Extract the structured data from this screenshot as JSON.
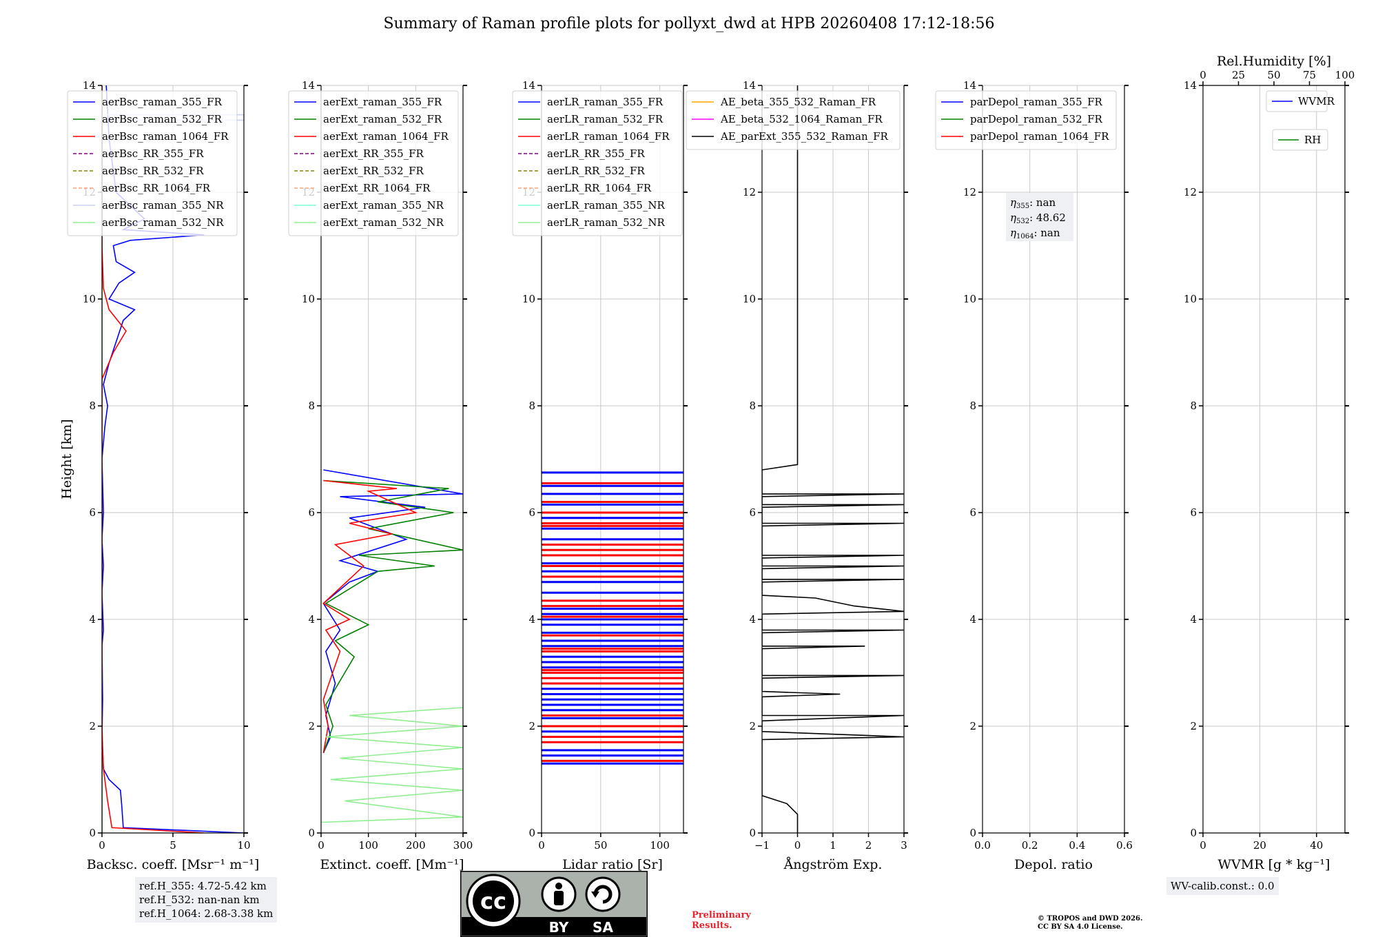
{
  "title": "Summary of Raman profile plots for pollyxt_dwd at HPB 20260408 17:12-18:56",
  "chart_data": [
    {
      "type": "line",
      "name": "backscatter",
      "xlabel": "Backsc. coeff. [Msr⁻¹ m⁻¹]",
      "ylabel": "Height [km]",
      "xlim": [
        0,
        10
      ],
      "ylim": [
        0,
        14
      ],
      "xticks": [
        "0",
        "5",
        "10"
      ],
      "yticks": [
        "0",
        "2",
        "4",
        "6",
        "8",
        "10",
        "12",
        "14"
      ],
      "legend": [
        "aerBsc_raman_355_FR",
        "aerBsc_raman_532_FR",
        "aerBsc_raman_1064_FR",
        "aerBsc_RR_355_FR",
        "aerBsc_RR_532_FR",
        "aerBsc_RR_1064_FR",
        "aerBsc_raman_355_NR",
        "aerBsc_raman_532_NR"
      ],
      "series": [
        {
          "name": "aerBsc_raman_355_FR",
          "color": "#0000ff",
          "points": [
            [
              10,
              0
            ],
            [
              1.5,
              0.1
            ],
            [
              1.4,
              0.5
            ],
            [
              1.3,
              0.8
            ],
            [
              0.5,
              1.0
            ],
            [
              0.1,
              1.2
            ],
            [
              0,
              1.8
            ],
            [
              0.05,
              2.5
            ],
            [
              0,
              3.5
            ],
            [
              0.1,
              3.8
            ],
            [
              0,
              4.5
            ],
            [
              0.1,
              5.0
            ],
            [
              0,
              5.5
            ],
            [
              0.1,
              6.0
            ],
            [
              0,
              7.0
            ],
            [
              0.2,
              7.6
            ],
            [
              0.4,
              8.0
            ],
            [
              0.1,
              8.4
            ],
            [
              0.5,
              8.8
            ],
            [
              1.0,
              9.2
            ],
            [
              1.5,
              9.6
            ],
            [
              2.3,
              9.8
            ],
            [
              0.5,
              10.0
            ],
            [
              1.2,
              10.3
            ],
            [
              2.3,
              10.5
            ],
            [
              1.0,
              10.7
            ],
            [
              0.8,
              11.0
            ],
            [
              2.0,
              11.1
            ],
            [
              7.2,
              11.2
            ],
            [
              1.5,
              11.3
            ],
            [
              3.0,
              11.5
            ],
            [
              1.0,
              12.0
            ],
            [
              0.5,
              13.0
            ],
            [
              0.3,
              14.0
            ]
          ]
        },
        {
          "name": "aerBsc_raman_532_FR",
          "color": "#008000",
          "points": [
            [
              0,
              0
            ],
            [
              0,
              14
            ]
          ]
        },
        {
          "name": "aerBsc_raman_1064_FR",
          "color": "#ff0000",
          "points": [
            [
              7.2,
              0
            ],
            [
              0.7,
              0.1
            ],
            [
              0.4,
              0.6
            ],
            [
              0.1,
              1.2
            ],
            [
              0,
              2.0
            ],
            [
              0,
              8.5
            ],
            [
              0.8,
              9.0
            ],
            [
              1.7,
              9.4
            ],
            [
              0.5,
              9.8
            ],
            [
              0.1,
              10.2
            ],
            [
              0,
              11.0
            ],
            [
              0,
              14.0
            ]
          ]
        },
        {
          "name": "aerBsc_raman_355_NR",
          "color": "#c8d2f0",
          "points": [
            [
              0,
              13.45
            ],
            [
              10,
              13.45
            ],
            [
              10,
              13.35
            ],
            [
              0,
              13.35
            ]
          ]
        }
      ]
    },
    {
      "type": "line",
      "name": "extinction",
      "xlabel": "Extinct. coeff. [Mm⁻¹]",
      "xlim": [
        0,
        300
      ],
      "ylim": [
        0,
        14
      ],
      "xticks": [
        "0",
        "100",
        "200",
        "300"
      ],
      "yticks": [
        "0",
        "2",
        "4",
        "6",
        "8",
        "10",
        "12",
        "14"
      ],
      "legend": [
        "aerExt_raman_355_FR",
        "aerExt_raman_532_FR",
        "aerExt_raman_1064_FR",
        "aerExt_RR_355_FR",
        "aerExt_RR_532_FR",
        "aerExt_RR_1064_FR",
        "aerExt_raman_355_NR",
        "aerExt_raman_532_NR"
      ],
      "series": [
        {
          "name": "aerExt_raman_355_FR",
          "color": "#0000ff",
          "points": [
            [
              5,
              1.5
            ],
            [
              20,
              1.8
            ],
            [
              10,
              2.2
            ],
            [
              30,
              2.8
            ],
            [
              10,
              3.4
            ],
            [
              40,
              3.8
            ],
            [
              5,
              4.3
            ],
            [
              60,
              4.7
            ],
            [
              120,
              4.9
            ],
            [
              40,
              5.1
            ],
            [
              180,
              5.5
            ],
            [
              60,
              5.9
            ],
            [
              220,
              6.1
            ],
            [
              40,
              6.3
            ],
            [
              300,
              6.35
            ],
            [
              5,
              6.8
            ]
          ]
        },
        {
          "name": "aerExt_raman_532_FR",
          "color": "#008000",
          "points": [
            [
              5,
              1.5
            ],
            [
              25,
              2.0
            ],
            [
              10,
              2.4
            ],
            [
              70,
              3.3
            ],
            [
              30,
              3.6
            ],
            [
              100,
              3.9
            ],
            [
              10,
              4.3
            ],
            [
              120,
              4.9
            ],
            [
              240,
              5.0
            ],
            [
              80,
              5.2
            ],
            [
              300,
              5.3
            ],
            [
              100,
              5.7
            ],
            [
              280,
              6.0
            ],
            [
              120,
              6.2
            ],
            [
              270,
              6.45
            ],
            [
              5,
              6.6
            ]
          ]
        },
        {
          "name": "aerExt_raman_1064_FR",
          "color": "#ff0000",
          "points": [
            [
              5,
              1.5
            ],
            [
              15,
              2.0
            ],
            [
              5,
              2.5
            ],
            [
              40,
              3.4
            ],
            [
              10,
              3.8
            ],
            [
              60,
              4.0
            ],
            [
              5,
              4.3
            ],
            [
              90,
              5.0
            ],
            [
              30,
              5.4
            ],
            [
              150,
              5.6
            ],
            [
              60,
              5.8
            ],
            [
              200,
              6.0
            ],
            [
              100,
              6.4
            ],
            [
              160,
              6.45
            ],
            [
              5,
              6.6
            ]
          ]
        },
        {
          "name": "aerExt_raman_532_NR",
          "color": "#90ee90",
          "points": [
            [
              0,
              0.2
            ],
            [
              300,
              0.3
            ],
            [
              50,
              0.6
            ],
            [
              300,
              0.8
            ],
            [
              20,
              1.0
            ],
            [
              300,
              1.2
            ],
            [
              40,
              1.4
            ],
            [
              300,
              1.6
            ],
            [
              10,
              1.8
            ],
            [
              300,
              2.0
            ],
            [
              60,
              2.2
            ],
            [
              300,
              2.35
            ]
          ]
        }
      ]
    },
    {
      "type": "line",
      "name": "lidar_ratio",
      "xlabel": "Lidar ratio [Sr]",
      "xlim": [
        0,
        120
      ],
      "ylim": [
        0,
        14
      ],
      "xticks": [
        "0",
        "50",
        "100"
      ],
      "yticks": [
        "0",
        "2",
        "4",
        "6",
        "8",
        "10",
        "12",
        "14"
      ],
      "legend": [
        "aerLR_raman_355_FR",
        "aerLR_raman_532_FR",
        "aerLR_raman_1064_FR",
        "aerLR_RR_355_FR",
        "aerLR_RR_532_FR",
        "aerLR_RR_1064_FR",
        "aerLR_raman_355_NR",
        "aerLR_raman_532_NR"
      ],
      "series": [
        {
          "name": "aerLR_raman_355_FR",
          "color": "#0000ff",
          "levels": [
            1.3,
            1.45,
            1.55,
            1.9,
            2.15,
            2.3,
            2.4,
            2.5,
            2.6,
            2.7,
            3.1,
            3.2,
            3.3,
            3.5,
            3.6,
            3.75,
            3.9,
            4.0,
            4.1,
            4.2,
            4.5,
            4.7,
            4.9,
            5.05,
            5.5,
            5.7,
            5.9,
            6.15,
            6.35,
            6.5,
            6.75
          ]
        },
        {
          "name": "aerLR_raman_1064_FR",
          "color": "#ff0000",
          "levels": [
            1.35,
            1.7,
            1.8,
            2.0,
            2.2,
            2.8,
            2.9,
            3.0,
            3.05,
            3.4,
            3.45,
            3.7,
            4.05,
            4.25,
            4.35,
            4.8,
            5.0,
            5.2,
            5.3,
            5.4,
            5.75,
            5.8,
            6.0,
            6.2,
            6.55
          ]
        }
      ]
    },
    {
      "type": "line",
      "name": "angstrom",
      "xlabel": "Ångström Exp.",
      "xlim": [
        -1,
        3
      ],
      "ylim": [
        0,
        14
      ],
      "xticks": [
        "−1",
        "0",
        "1",
        "2",
        "3"
      ],
      "yticks": [
        "0",
        "2",
        "4",
        "6",
        "8",
        "10",
        "12",
        "14"
      ],
      "legend": [
        "AE_beta_355_532_Raman_FR",
        "AE_beta_532_1064_Raman_FR",
        "AE_parExt_355_532_Raman_FR"
      ],
      "series": [
        {
          "name": "AE_beta_355_532_Raman_FR",
          "color": "#ffa500",
          "points": []
        },
        {
          "name": "AE_beta_532_1064_Raman_FR",
          "color": "#ff00ff",
          "points": []
        },
        {
          "name": "AE_parExt_355_532_Raman_FR",
          "color": "#000000",
          "points": [
            [
              0,
              14.0
            ],
            [
              0,
              6.9
            ],
            [
              -1,
              6.8
            ],
            [
              -1,
              6.35
            ],
            [
              3,
              6.35
            ],
            [
              -1,
              6.3
            ],
            [
              -1,
              6.15
            ],
            [
              3,
              6.15
            ],
            [
              -1,
              6.1
            ],
            [
              -1,
              5.8
            ],
            [
              3,
              5.8
            ],
            [
              -1,
              5.75
            ],
            [
              -1,
              5.2
            ],
            [
              3,
              5.2
            ],
            [
              -1,
              5.15
            ],
            [
              -1,
              5.0
            ],
            [
              3,
              5.0
            ],
            [
              -1,
              4.95
            ],
            [
              -1,
              4.75
            ],
            [
              3,
              4.75
            ],
            [
              -1,
              4.7
            ],
            [
              -1,
              4.45
            ],
            [
              0.5,
              4.4
            ],
            [
              1.6,
              4.25
            ],
            [
              3,
              4.15
            ],
            [
              -1,
              4.1
            ],
            [
              -1,
              3.8
            ],
            [
              3,
              3.8
            ],
            [
              -1,
              3.75
            ],
            [
              -1,
              3.5
            ],
            [
              1.9,
              3.5
            ],
            [
              -1,
              3.45
            ],
            [
              -1,
              2.95
            ],
            [
              3,
              2.95
            ],
            [
              -1,
              2.9
            ],
            [
              -1,
              2.65
            ],
            [
              1.2,
              2.6
            ],
            [
              -1,
              2.55
            ],
            [
              -1,
              2.2
            ],
            [
              3,
              2.2
            ],
            [
              -1,
              2.1
            ],
            [
              -1,
              1.9
            ],
            [
              3,
              1.8
            ],
            [
              -1,
              1.75
            ],
            [
              -1,
              0.7
            ],
            [
              -0.3,
              0.55
            ],
            [
              0,
              0.35
            ],
            [
              0,
              0
            ]
          ]
        }
      ]
    },
    {
      "type": "line",
      "name": "depolarization",
      "xlabel": "Depol. ratio",
      "xlim": [
        0,
        0.6
      ],
      "ylim": [
        0,
        14
      ],
      "xticks": [
        "0.0",
        "0.2",
        "0.4",
        "0.6"
      ],
      "yticks": [
        "0",
        "2",
        "4",
        "6",
        "8",
        "10",
        "12",
        "14"
      ],
      "legend": [
        "parDepol_raman_355_FR",
        "parDepol_raman_532_FR",
        "parDepol_raman_1064_FR"
      ],
      "eta": [
        {
          "label": "η355",
          "sub": "355",
          "value": "nan"
        },
        {
          "label": "η532",
          "sub": "532",
          "value": "48.62"
        },
        {
          "label": "η1064",
          "sub": "1064",
          "value": "nan"
        }
      ],
      "series": []
    },
    {
      "type": "line",
      "name": "water_vapor",
      "xlabel": "WVMR [g * kg⁻¹]",
      "xlabel_top": "Rel.Humidity [%]",
      "xlim": [
        0,
        50
      ],
      "xlim_top": [
        0,
        100
      ],
      "ylim": [
        0,
        14
      ],
      "xticks": [
        "0",
        "20",
        "40"
      ],
      "xticks_top": [
        "0",
        "25",
        "50",
        "75",
        "100"
      ],
      "yticks": [
        "0",
        "2",
        "4",
        "6",
        "8",
        "10",
        "12",
        "14"
      ],
      "legend": [
        "WVMR",
        "RH"
      ],
      "series": []
    }
  ],
  "ref_heights": [
    "ref.H_355: 4.72-5.42 km",
    "ref.H_532: nan-nan km",
    "ref.H_1064: 2.68-3.38 km"
  ],
  "wv_calib": "WV-calib.const.: 0.0",
  "cc_badge": {
    "by": "BY",
    "sa": "SA"
  },
  "preliminary": [
    "Preliminary",
    "Results."
  ],
  "copyright": [
    "© TROPOS and DWD 2026.",
    "CC BY SA 4.0 License."
  ]
}
